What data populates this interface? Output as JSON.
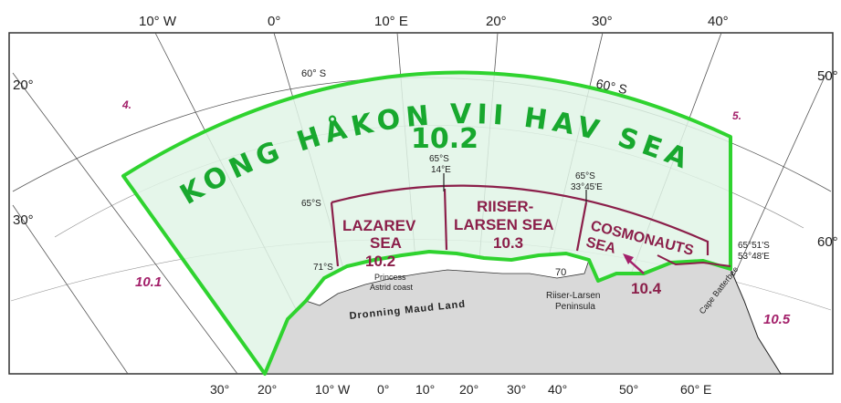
{
  "top_longitude_labels": [
    "10° W",
    "0°",
    "10° E",
    "20°",
    "30°",
    "40°"
  ],
  "left_latitude_labels": [
    "20°",
    "30°"
  ],
  "right_latitude_labels": [
    "50°",
    "60°"
  ],
  "bottom_labels": [
    "30°",
    "20°",
    "10° W",
    "0°",
    "10°",
    "20°",
    "30°",
    "40°",
    "50°",
    "60° E"
  ],
  "parallel_60s": "60° S",
  "zones": {
    "z4": "4.",
    "z5": "5.",
    "z10_1": "10.1",
    "z10_5": "10.5"
  },
  "main_area": {
    "title": "KONG HÅKON VII HAV SEA",
    "code": "10.2"
  },
  "sub_seas": [
    {
      "name_line1": "LAZAREV",
      "name_line2": "SEA",
      "code": "10.2"
    },
    {
      "name_line1": "RIISER-",
      "name_line2": "LARSEN SEA",
      "code": "10.3"
    },
    {
      "name_line1": "COSMONAUTS",
      "name_line2": "SEA",
      "code": "10.4"
    }
  ],
  "coordinates": {
    "c65s": "65°S",
    "c71s": "71°S",
    "p1_lat": "65°S",
    "p1_lon": "14°E",
    "p2_lat": "65°S",
    "p2_lon": "33°45'E",
    "p3_lat": "65°51'S",
    "p3_lon": "53°48'E"
  },
  "place_names": {
    "astrid1": "Princess",
    "astrid2": "Astrid coast",
    "maud": "Dronning Maud Land",
    "rl1": "Riiser-Larsen",
    "rl2": "Peninsula",
    "batterbee": "Cape Batterbee",
    "seventy": "70"
  },
  "colors": {
    "green_border": "#2fd32f",
    "green_fill": "#e0f5e6",
    "subsea_border": "#8b1f4a",
    "land": "#d9d9d9"
  }
}
